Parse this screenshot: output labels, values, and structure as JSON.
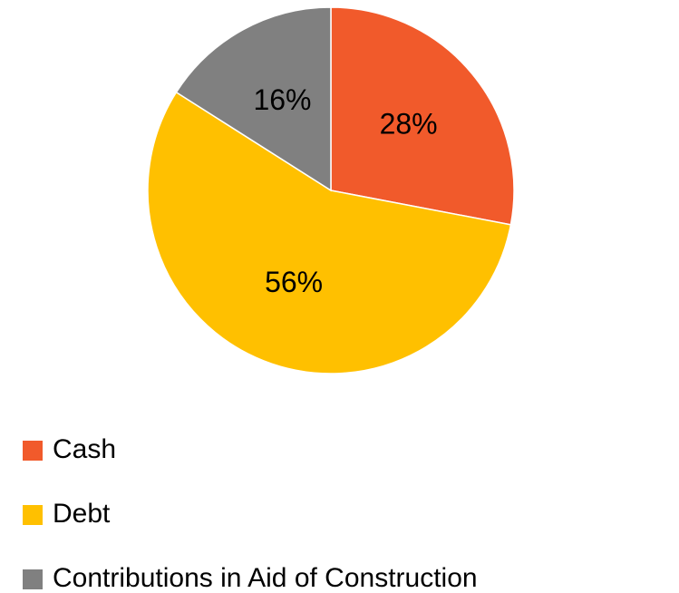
{
  "chart_data": {
    "type": "pie",
    "categories": [
      "Cash",
      "Debt",
      "Contributions in Aid of Construction"
    ],
    "values": [
      28,
      56,
      16
    ],
    "value_labels": [
      "28%",
      "56%",
      "16%"
    ],
    "colors": [
      "#f15a2b",
      "#ffc000",
      "#808080"
    ],
    "legend": "bottom-left"
  }
}
